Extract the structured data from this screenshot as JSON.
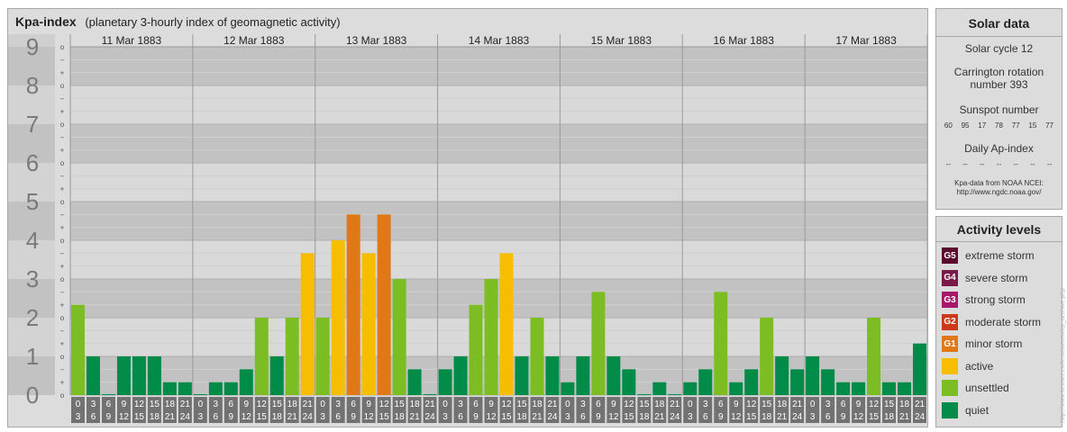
{
  "header": {
    "title": "Kpa-index",
    "subtitle": "(planetary 3-hourly index of geomagnetic activity)"
  },
  "solar": {
    "heading": "Solar data",
    "cycle": "Solar cycle 12",
    "carrington_line1": "Carrington rotation",
    "carrington_line2": "number 393",
    "sunspot_heading": "Sunspot number",
    "sunspot_values": [
      "60",
      "95",
      "17",
      "78",
      "77",
      "15",
      "77"
    ],
    "ap_heading": "Daily Ap-index",
    "ap_values": [
      "--",
      "--",
      "--",
      "--",
      "--",
      "--",
      "--"
    ],
    "source_line1": "Kpa-data from NOAA NCEI:",
    "source_line2": "http://www.ngdc.noaa.gov/"
  },
  "levels": {
    "heading": "Activity levels",
    "items": [
      {
        "code": "G5",
        "label": "extreme storm",
        "color": "#5c0a2e"
      },
      {
        "code": "G4",
        "label": "severe storm",
        "color": "#7a1a4b"
      },
      {
        "code": "G3",
        "label": "strong storm",
        "color": "#a8186a"
      },
      {
        "code": "G2",
        "label": "moderate storm",
        "color": "#cc3a1a"
      },
      {
        "code": "G1",
        "label": "minor storm",
        "color": "#e07817"
      },
      {
        "code": "",
        "label": "active",
        "color": "#f7bd00"
      },
      {
        "code": "",
        "label": "unsettled",
        "color": "#7cbd24"
      },
      {
        "code": "",
        "label": "quiet",
        "color": "#008c48"
      }
    ]
  },
  "credit": "http://www.tieuser.eu/tera/aurora/kp_archive.php",
  "chart_data": {
    "type": "bar",
    "y_axis_labels": [
      "0",
      "1",
      "2",
      "3",
      "4",
      "5",
      "6",
      "7",
      "8",
      "9"
    ],
    "y_sub_labels": [
      "o",
      "+",
      "−"
    ],
    "ylim": [
      0,
      9
    ],
    "days": [
      "11 Mar 1883",
      "12 Mar 1883",
      "13 Mar 1883",
      "14 Mar 1883",
      "15 Mar 1883",
      "16 Mar 1883",
      "17 Mar 1883"
    ],
    "interval_start": [
      "0",
      "3",
      "6",
      "9",
      "12",
      "15",
      "18",
      "21"
    ],
    "interval_end": [
      "3",
      "6",
      "9",
      "12",
      "15",
      "18",
      "21",
      "24"
    ],
    "colors": {
      "quiet": "#008c48",
      "unsettled": "#7cbd24",
      "active": "#f7bd00",
      "minor": "#e07817",
      "moderate": "#cc3a1a"
    },
    "values": [
      [
        2.333,
        1.0,
        0.0,
        1.0,
        1.0,
        1.0,
        0.333,
        0.333
      ],
      [
        0.0,
        0.333,
        0.333,
        0.667,
        2.0,
        1.0,
        2.0,
        3.667
      ],
      [
        2.0,
        4.0,
        4.667,
        3.667,
        4.667,
        3.0,
        0.667,
        0.0
      ],
      [
        0.667,
        1.0,
        2.333,
        3.0,
        3.667,
        1.0,
        2.0,
        1.0
      ],
      [
        0.333,
        1.0,
        2.667,
        1.0,
        0.667,
        0.0,
        0.333,
        0.0
      ],
      [
        0.333,
        0.667,
        2.667,
        0.333,
        0.667,
        2.0,
        1.0,
        0.667
      ],
      [
        1.0,
        0.667,
        0.333,
        0.333,
        2.0,
        0.333,
        0.333,
        1.333
      ]
    ]
  }
}
